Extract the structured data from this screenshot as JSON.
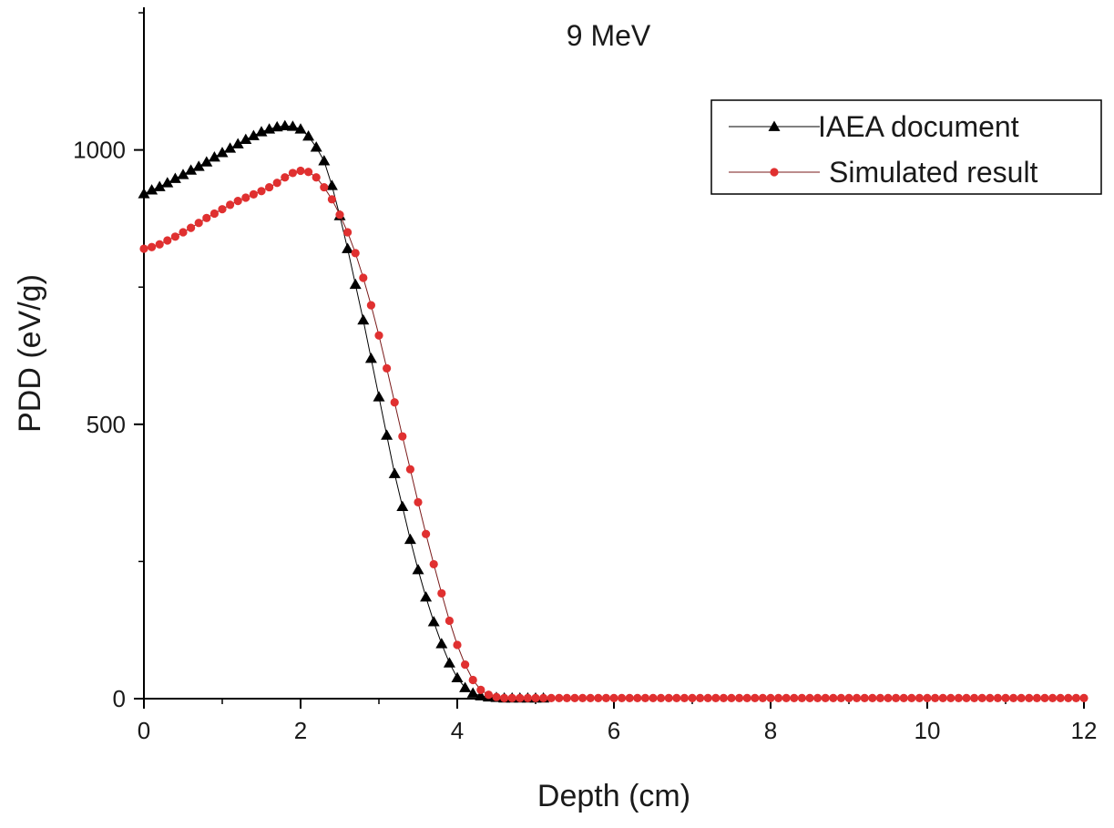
{
  "chart_data": {
    "type": "scatter",
    "title": "9 MeV",
    "xlabel": "Depth (cm)",
    "ylabel": "PDD (eV/g)",
    "xlim": [
      0,
      12
    ],
    "ylim": [
      0,
      1260
    ],
    "xticks": [
      0,
      2,
      4,
      6,
      8,
      10,
      12
    ],
    "yticks": [
      0,
      500,
      1000
    ],
    "x_minor_step": 1,
    "y_minor_step": 250,
    "legend_position": "top-right",
    "series": [
      {
        "name": "IAEA document",
        "marker": "triangle",
        "color": "#000000",
        "x_start": 0,
        "x_step": 0.1,
        "values": [
          920,
          927,
          933,
          940,
          948,
          955,
          963,
          970,
          978,
          987,
          995,
          1003,
          1011,
          1019,
          1026,
          1033,
          1038,
          1042,
          1044,
          1043,
          1038,
          1025,
          1005,
          980,
          935,
          880,
          820,
          755,
          690,
          620,
          550,
          480,
          410,
          350,
          290,
          235,
          185,
          140,
          100,
          65,
          38,
          20,
          10,
          5,
          3,
          2,
          1,
          1,
          1,
          1,
          1,
          1
        ]
      },
      {
        "name": "Simulated result",
        "marker": "circle",
        "color": "#e03030",
        "x_start": 0,
        "x_step": 0.1,
        "values": [
          820,
          823,
          828,
          835,
          842,
          850,
          858,
          867,
          876,
          884,
          892,
          900,
          907,
          913,
          919,
          925,
          932,
          940,
          950,
          958,
          962,
          960,
          950,
          932,
          910,
          882,
          850,
          812,
          767,
          717,
          662,
          602,
          540,
          478,
          418,
          358,
          300,
          245,
          192,
          142,
          98,
          62,
          34,
          16,
          7,
          3,
          1,
          1,
          1,
          1,
          1,
          1,
          1,
          1,
          1,
          1,
          1,
          1,
          1,
          1,
          1,
          1,
          1,
          1,
          1,
          1,
          1,
          1,
          1,
          1,
          1,
          1,
          1,
          1,
          1,
          1,
          1,
          1,
          1,
          1,
          1,
          1,
          1,
          1,
          1,
          1,
          1,
          1,
          1,
          1,
          1,
          1,
          1,
          1,
          1,
          1,
          1,
          1,
          1,
          1,
          1,
          1,
          1,
          1,
          1,
          1,
          1,
          1,
          1,
          1,
          1,
          1,
          1,
          1,
          1,
          1,
          1,
          1,
          1,
          1,
          1
        ]
      }
    ]
  }
}
